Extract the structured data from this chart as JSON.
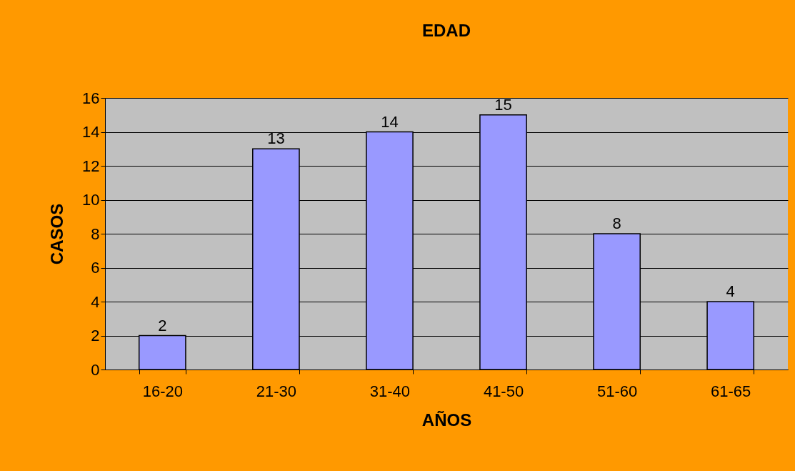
{
  "chart_data": {
    "type": "bar",
    "title": "EDAD",
    "xlabel": "AÑOS",
    "ylabel": "CASOS",
    "categories": [
      "16-20",
      "21-30",
      "31-40",
      "41-50",
      "51-60",
      "61-65"
    ],
    "values": [
      2,
      13,
      14,
      15,
      8,
      4
    ],
    "color": "#9999ff",
    "ylim": [
      0,
      16
    ],
    "yticks": [
      0,
      2,
      4,
      6,
      8,
      10,
      12,
      14,
      16
    ],
    "grid": "y",
    "data_labels": true
  }
}
